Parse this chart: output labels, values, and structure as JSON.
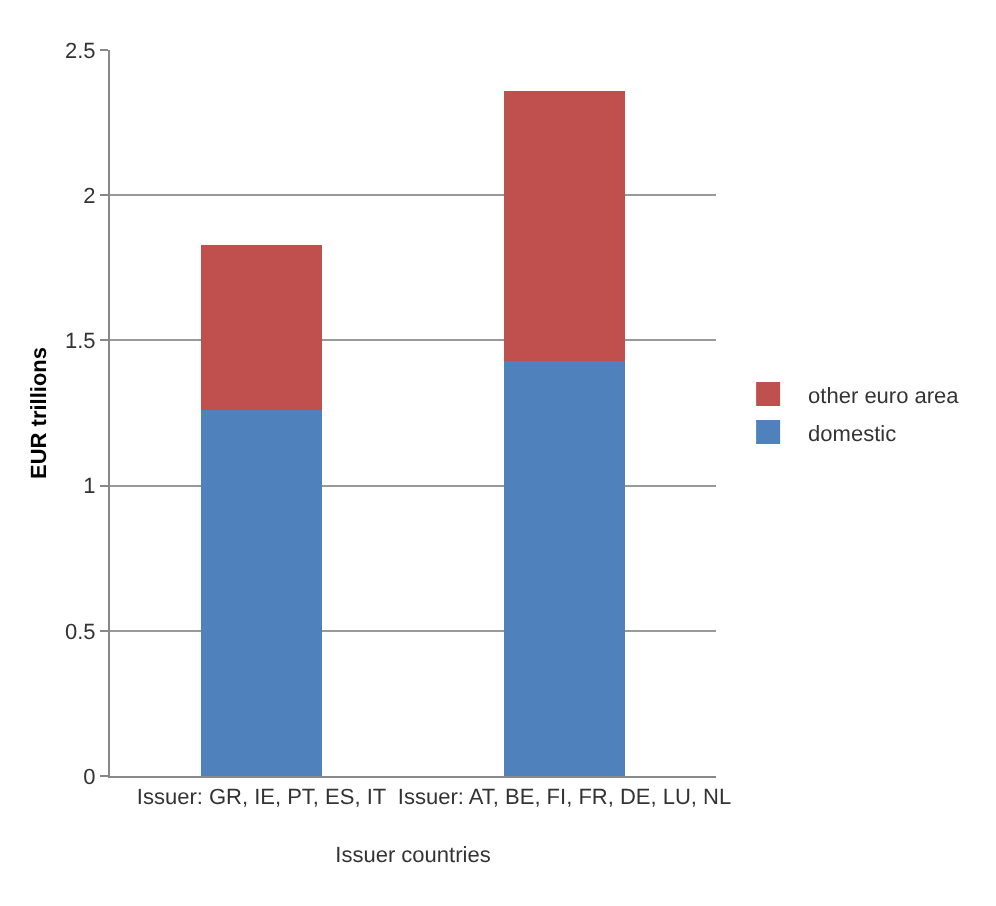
{
  "chart_data": {
    "type": "bar",
    "stacked": true,
    "xlabel": "Issuer countries",
    "ylabel": "EUR trillions",
    "categories": [
      "Issuer: GR, IE, PT, ES, IT",
      "Issuer: AT, BE, FI, FR, DE, LU, NL"
    ],
    "series": [
      {
        "name": "domestic",
        "color": "#4f81bd",
        "values": [
          1.26,
          1.43
        ]
      },
      {
        "name": "other euro area",
        "color": "#c0504d",
        "values": [
          0.57,
          0.93
        ]
      }
    ],
    "ylim": [
      0,
      2.5
    ],
    "yticks": [
      0,
      0.5,
      1,
      1.5,
      2,
      2.5
    ],
    "grid": "y",
    "legend": "right"
  }
}
